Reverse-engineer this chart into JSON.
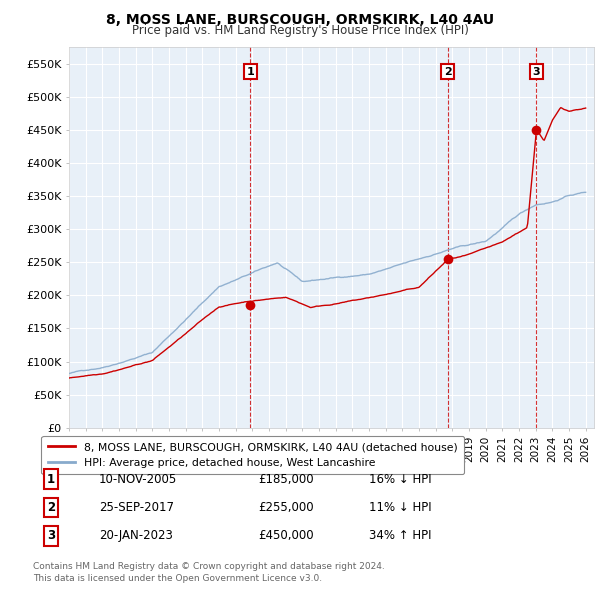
{
  "title": "8, MOSS LANE, BURSCOUGH, ORMSKIRK, L40 4AU",
  "subtitle": "Price paid vs. HM Land Registry's House Price Index (HPI)",
  "ylabel_ticks": [
    "£0",
    "£50K",
    "£100K",
    "£150K",
    "£200K",
    "£250K",
    "£300K",
    "£350K",
    "£400K",
    "£450K",
    "£500K",
    "£550K"
  ],
  "ytick_values": [
    0,
    50000,
    100000,
    150000,
    200000,
    250000,
    300000,
    350000,
    400000,
    450000,
    500000,
    550000
  ],
  "ylim": [
    0,
    575000
  ],
  "xlim_start": 1995.0,
  "xlim_end": 2026.5,
  "legend_red": "8, MOSS LANE, BURSCOUGH, ORMSKIRK, L40 4AU (detached house)",
  "legend_blue": "HPI: Average price, detached house, West Lancashire",
  "transactions": [
    {
      "num": 1,
      "date": "10-NOV-2005",
      "price": 185000,
      "pct": "16%",
      "dir": "↓",
      "year": 2005.87
    },
    {
      "num": 2,
      "date": "25-SEP-2017",
      "price": 255000,
      "pct": "11%",
      "dir": "↓",
      "year": 2017.73
    },
    {
      "num": 3,
      "date": "20-JAN-2023",
      "price": 450000,
      "pct": "34%",
      "dir": "↑",
      "year": 2023.05
    }
  ],
  "footnote1": "Contains HM Land Registry data © Crown copyright and database right 2024.",
  "footnote2": "This data is licensed under the Open Government Licence v3.0.",
  "bg_color": "#ffffff",
  "plot_bg_color": "#e8f0f8",
  "grid_color": "#ffffff",
  "red_color": "#cc0000",
  "blue_color": "#88aacc"
}
